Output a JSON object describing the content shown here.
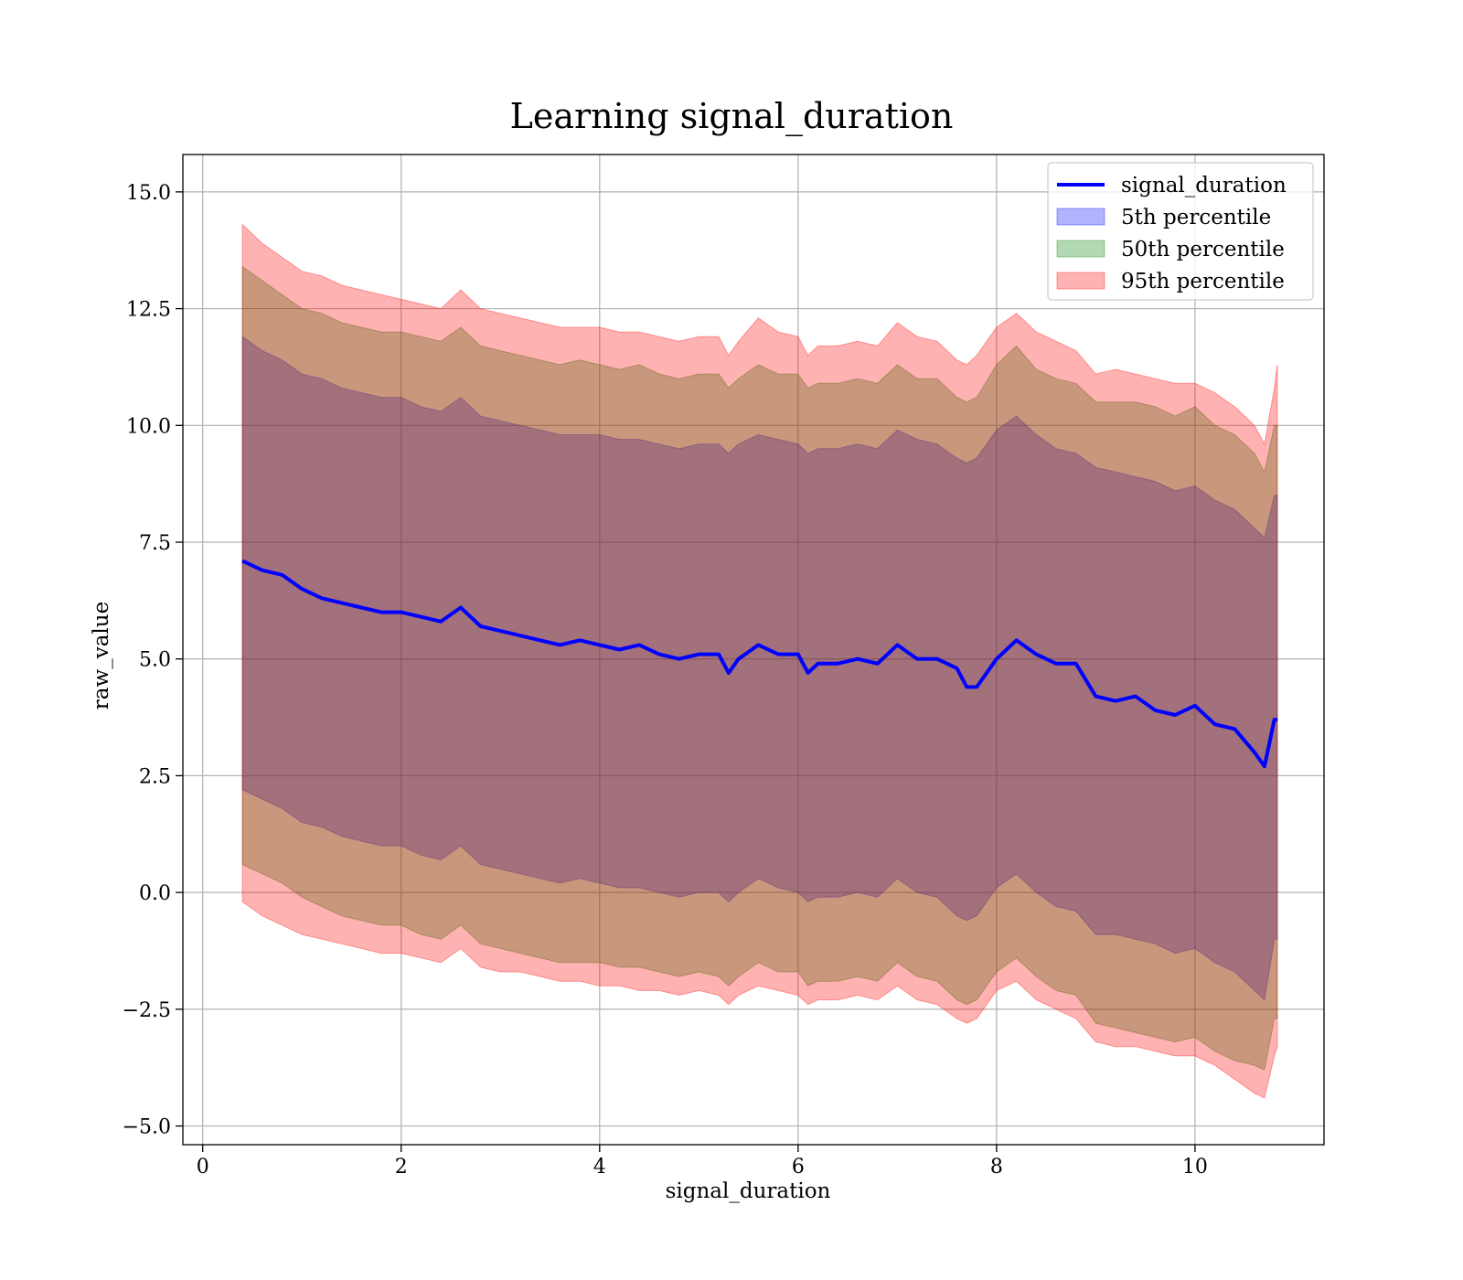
{
  "chart_data": {
    "type": "area",
    "title": "Learning signal_duration",
    "xlabel": "signal_duration",
    "ylabel": "raw_value",
    "xlim": [
      -0.2,
      11.3
    ],
    "ylim": [
      -5.4,
      15.8
    ],
    "x_ticks": [
      0,
      2,
      4,
      6,
      8,
      10
    ],
    "x_tick_labels": [
      "0",
      "2",
      "4",
      "6",
      "8",
      "10"
    ],
    "y_ticks": [
      -5.0,
      -2.5,
      0.0,
      2.5,
      5.0,
      7.5,
      10.0,
      12.5,
      15.0
    ],
    "y_tick_labels": [
      "−5.0",
      "−2.5",
      "0.0",
      "2.5",
      "5.0",
      "7.5",
      "10.0",
      "12.5",
      "15.0"
    ],
    "grid": true,
    "legend_position": "top-right",
    "legend": [
      {
        "label": "signal_duration",
        "kind": "line",
        "color": "#0000ff"
      },
      {
        "label": "5th percentile",
        "kind": "patch",
        "color": "#0000ff"
      },
      {
        "label": "50th percentile",
        "kind": "patch",
        "color": "#008000"
      },
      {
        "label": "95th percentile",
        "kind": "patch",
        "color": "#ff0000"
      }
    ],
    "colors": {
      "line": "#0000ff",
      "band_5th": "#0000ff",
      "band_50th": "#008000",
      "band_95th": "#ff0000"
    },
    "x": [
      0.4,
      0.6,
      0.8,
      1.0,
      1.2,
      1.4,
      1.6,
      1.8,
      2.0,
      2.2,
      2.4,
      2.6,
      2.8,
      3.0,
      3.2,
      3.4,
      3.6,
      3.8,
      4.0,
      4.2,
      4.4,
      4.6,
      4.8,
      5.0,
      5.2,
      5.3,
      5.4,
      5.6,
      5.8,
      6.0,
      6.1,
      6.2,
      6.4,
      6.6,
      6.8,
      7.0,
      7.2,
      7.4,
      7.6,
      7.7,
      7.8,
      8.0,
      8.2,
      8.4,
      8.6,
      8.8,
      9.0,
      9.2,
      9.4,
      9.6,
      9.8,
      10.0,
      10.2,
      10.4,
      10.6,
      10.7,
      10.8,
      10.83
    ],
    "series": [
      {
        "name": "signal_duration",
        "values": [
          7.1,
          6.9,
          6.8,
          6.5,
          6.3,
          6.2,
          6.1,
          6.0,
          6.0,
          5.9,
          5.8,
          6.1,
          5.7,
          5.6,
          5.5,
          5.4,
          5.3,
          5.4,
          5.3,
          5.2,
          5.3,
          5.1,
          5.0,
          5.1,
          5.1,
          4.7,
          5.0,
          5.3,
          5.1,
          5.1,
          4.7,
          4.9,
          4.9,
          5.0,
          4.9,
          5.3,
          5.0,
          5.0,
          4.8,
          4.4,
          4.4,
          5.0,
          5.4,
          5.1,
          4.9,
          4.9,
          4.2,
          4.1,
          4.2,
          3.9,
          3.8,
          4.0,
          3.6,
          3.5,
          3.0,
          2.7,
          3.7,
          3.7
        ]
      },
      {
        "name": "5th percentile",
        "upper": [
          11.9,
          11.6,
          11.4,
          11.1,
          11.0,
          10.8,
          10.7,
          10.6,
          10.6,
          10.4,
          10.3,
          10.6,
          10.2,
          10.1,
          10.0,
          9.9,
          9.8,
          9.8,
          9.8,
          9.7,
          9.7,
          9.6,
          9.5,
          9.6,
          9.6,
          9.4,
          9.6,
          9.8,
          9.7,
          9.6,
          9.4,
          9.5,
          9.5,
          9.6,
          9.5,
          9.9,
          9.7,
          9.6,
          9.3,
          9.2,
          9.3,
          9.9,
          10.2,
          9.8,
          9.5,
          9.4,
          9.1,
          9.0,
          8.9,
          8.8,
          8.6,
          8.7,
          8.4,
          8.2,
          7.8,
          7.6,
          8.5,
          8.5
        ],
        "lower": [
          2.2,
          2.0,
          1.8,
          1.5,
          1.4,
          1.2,
          1.1,
          1.0,
          1.0,
          0.8,
          0.7,
          1.0,
          0.6,
          0.5,
          0.4,
          0.3,
          0.2,
          0.3,
          0.2,
          0.1,
          0.1,
          0.0,
          -0.1,
          0.0,
          0.0,
          -0.2,
          0.0,
          0.3,
          0.1,
          0.0,
          -0.2,
          -0.1,
          -0.1,
          0.0,
          -0.1,
          0.3,
          0.0,
          -0.1,
          -0.5,
          -0.6,
          -0.5,
          0.1,
          0.4,
          0.0,
          -0.3,
          -0.4,
          -0.9,
          -0.9,
          -1.0,
          -1.1,
          -1.3,
          -1.2,
          -1.5,
          -1.7,
          -2.1,
          -2.3,
          -1.0,
          -1.0
        ]
      },
      {
        "name": "50th percentile",
        "upper": [
          13.4,
          13.1,
          12.8,
          12.5,
          12.4,
          12.2,
          12.1,
          12.0,
          12.0,
          11.9,
          11.8,
          12.1,
          11.7,
          11.6,
          11.5,
          11.4,
          11.3,
          11.4,
          11.3,
          11.2,
          11.3,
          11.1,
          11.0,
          11.1,
          11.1,
          10.8,
          11.0,
          11.3,
          11.1,
          11.1,
          10.8,
          10.9,
          10.9,
          11.0,
          10.9,
          11.3,
          11.0,
          11.0,
          10.6,
          10.5,
          10.6,
          11.3,
          11.7,
          11.2,
          11.0,
          10.9,
          10.5,
          10.5,
          10.5,
          10.4,
          10.2,
          10.4,
          10.0,
          9.8,
          9.4,
          9.0,
          10.0,
          10.0
        ],
        "lower": [
          0.6,
          0.4,
          0.2,
          -0.1,
          -0.3,
          -0.5,
          -0.6,
          -0.7,
          -0.7,
          -0.9,
          -1.0,
          -0.7,
          -1.1,
          -1.2,
          -1.3,
          -1.4,
          -1.5,
          -1.5,
          -1.5,
          -1.6,
          -1.6,
          -1.7,
          -1.8,
          -1.7,
          -1.8,
          -2.0,
          -1.8,
          -1.5,
          -1.7,
          -1.7,
          -2.0,
          -1.9,
          -1.9,
          -1.8,
          -1.9,
          -1.5,
          -1.8,
          -1.9,
          -2.3,
          -2.4,
          -2.3,
          -1.7,
          -1.4,
          -1.8,
          -2.1,
          -2.2,
          -2.8,
          -2.9,
          -3.0,
          -3.1,
          -3.2,
          -3.1,
          -3.4,
          -3.6,
          -3.7,
          -3.8,
          -2.7,
          -2.7
        ]
      },
      {
        "name": "95th percentile",
        "upper": [
          14.3,
          13.9,
          13.6,
          13.3,
          13.2,
          13.0,
          12.9,
          12.8,
          12.7,
          12.6,
          12.5,
          12.9,
          12.5,
          12.4,
          12.3,
          12.2,
          12.1,
          12.1,
          12.1,
          12.0,
          12.0,
          11.9,
          11.8,
          11.9,
          11.9,
          11.5,
          11.8,
          12.3,
          12.0,
          11.9,
          11.5,
          11.7,
          11.7,
          11.8,
          11.7,
          12.2,
          11.9,
          11.8,
          11.4,
          11.3,
          11.5,
          12.1,
          12.4,
          12.0,
          11.8,
          11.6,
          11.1,
          11.2,
          11.1,
          11.0,
          10.9,
          10.9,
          10.7,
          10.4,
          10.0,
          9.6,
          10.8,
          11.3
        ],
        "lower": [
          -0.2,
          -0.5,
          -0.7,
          -0.9,
          -1.0,
          -1.1,
          -1.2,
          -1.3,
          -1.3,
          -1.4,
          -1.5,
          -1.2,
          -1.6,
          -1.7,
          -1.7,
          -1.8,
          -1.9,
          -1.9,
          -2.0,
          -2.0,
          -2.1,
          -2.1,
          -2.2,
          -2.1,
          -2.2,
          -2.4,
          -2.2,
          -2.0,
          -2.1,
          -2.2,
          -2.4,
          -2.3,
          -2.3,
          -2.2,
          -2.3,
          -2.0,
          -2.3,
          -2.4,
          -2.7,
          -2.8,
          -2.7,
          -2.1,
          -1.9,
          -2.3,
          -2.5,
          -2.7,
          -3.2,
          -3.3,
          -3.3,
          -3.4,
          -3.5,
          -3.5,
          -3.7,
          -4.0,
          -4.3,
          -4.4,
          -3.5,
          -3.3
        ]
      }
    ]
  }
}
